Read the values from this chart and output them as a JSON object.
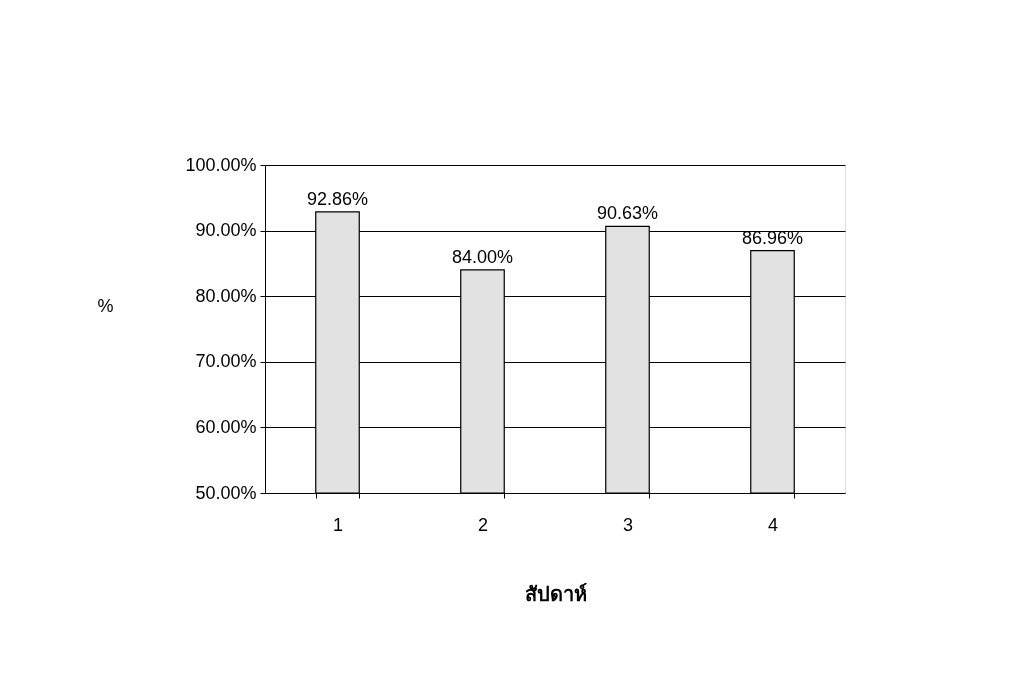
{
  "chart_data": {
    "type": "bar",
    "xlabel": "สัปดาห์",
    "ylabel": "%",
    "categories": [
      "1",
      "2",
      "3",
      "4"
    ],
    "values": [
      92.86,
      84.0,
      90.63,
      86.96
    ],
    "color": "#e2e2e2",
    "value_labels": [
      "92.86%",
      "84.00%",
      "90.63%",
      "86.96%"
    ],
    "ylim": [
      50,
      100
    ],
    "yticks": [
      {
        "value": 50,
        "label": "50.00%"
      },
      {
        "value": 60,
        "label": "60.00%"
      },
      {
        "value": 70,
        "label": "70.00%"
      },
      {
        "value": 80,
        "label": "80.00%"
      },
      {
        "value": 90,
        "label": "90.00%"
      },
      {
        "value": 100,
        "label": "100.00%"
      }
    ],
    "grid": "y"
  }
}
